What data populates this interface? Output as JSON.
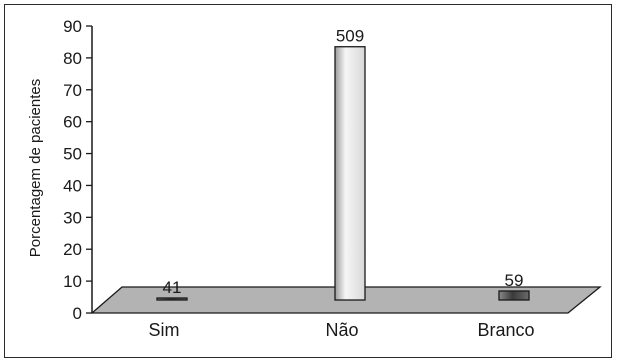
{
  "chart_data": {
    "type": "bar",
    "categories": [
      "Sim",
      "Não",
      "Branco"
    ],
    "values": [
      4.0,
      83.5,
      6.9
    ],
    "data_labels": [
      "41",
      "509",
      "59"
    ],
    "ylabel": "Porcentagem de pacientes",
    "ylim": [
      0,
      90
    ],
    "yticks": [
      0,
      10,
      20,
      30,
      40,
      50,
      60,
      70,
      80,
      90
    ],
    "grid": false,
    "legend": "none",
    "colors": {
      "floor": "#b3b3b3",
      "bar_light": "#f4f4f4",
      "bar_dark": "#4a4a4a",
      "outline": "#1a1a1a"
    }
  }
}
